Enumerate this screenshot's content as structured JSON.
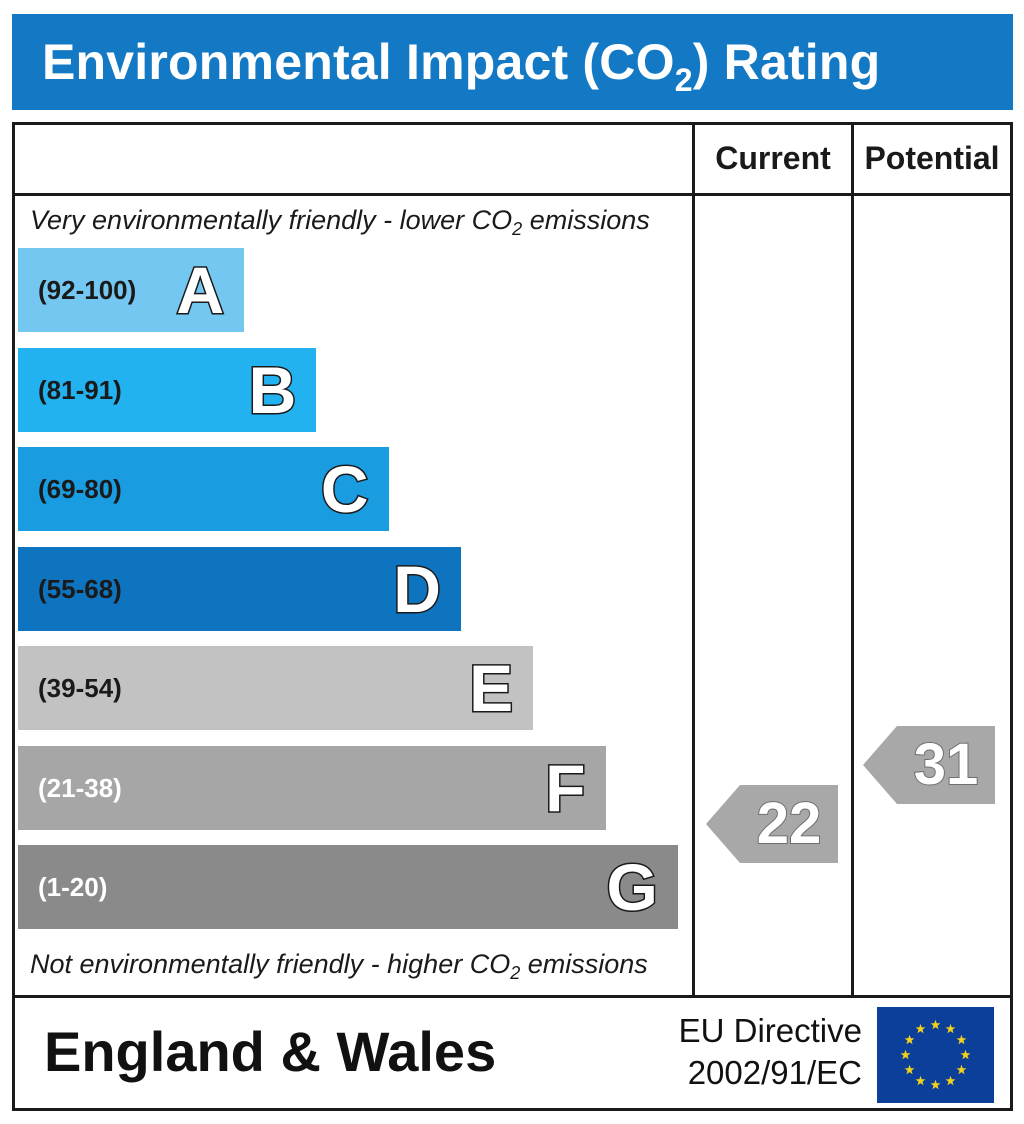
{
  "title": {
    "prefix": "Environmental Impact (CO",
    "sub": "2",
    "suffix": ") Rating"
  },
  "columns": {
    "current": "Current",
    "potential": "Potential"
  },
  "notes": {
    "top": {
      "prefix": "Very environmentally friendly - lower CO",
      "sub": "2",
      "suffix": " emissions"
    },
    "bottom": {
      "prefix": "Not environmentally friendly - higher CO",
      "sub": "2",
      "suffix": " emissions"
    }
  },
  "chart_data": {
    "type": "bar",
    "categories": [
      "A",
      "B",
      "C",
      "D",
      "E",
      "F",
      "G"
    ],
    "ranges": [
      "(92-100)",
      "(81-91)",
      "(69-80)",
      "(55-68)",
      "(39-54)",
      "(21-38)",
      "(1-20)"
    ],
    "colors": [
      "#74c7f0",
      "#22b2f0",
      "#1a9ce0",
      "#0f74c0",
      "#c2c2c2",
      "#a6a6a6",
      "#8a8a8a"
    ],
    "range_text_colors": [
      "#1a1a1a",
      "#1a1a1a",
      "#1a1a1a",
      "#1a1a1a",
      "#1a1a1a",
      "#ffffff",
      "#ffffff"
    ],
    "current": {
      "value": 22,
      "band": "F"
    },
    "potential": {
      "value": 31,
      "band": "F"
    },
    "arrow_color": "#a8a8a8"
  },
  "footer": {
    "region": "England & Wales",
    "directive_line1": "EU Directive",
    "directive_line2": "2002/91/EC",
    "flag_color": "#0b3f9a",
    "star_color": "#f4d21a",
    "flag_icon": "eu-flag-icon"
  }
}
